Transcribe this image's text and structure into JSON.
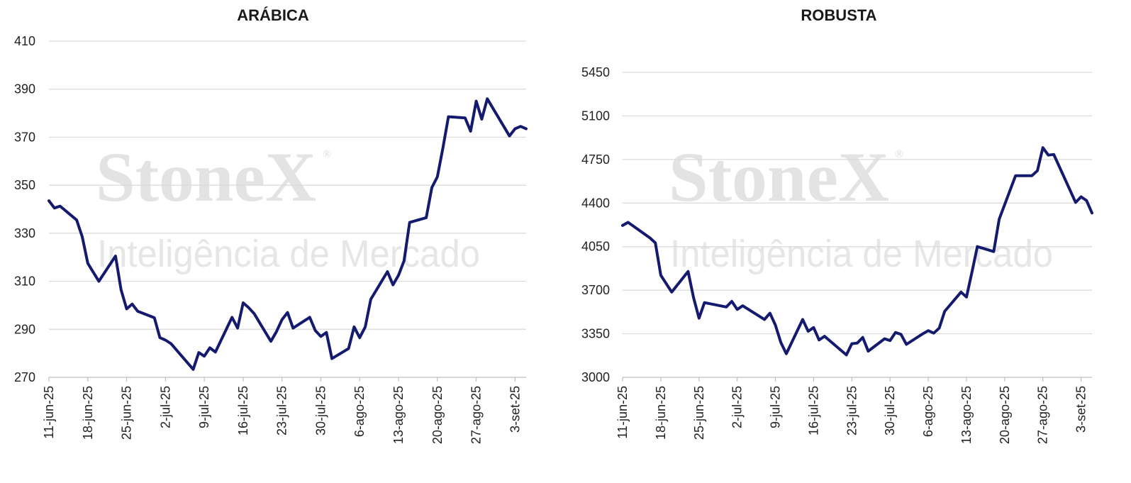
{
  "watermark": {
    "brand": "StoneX",
    "reg": "®",
    "tagline": "Inteligência de Mercado"
  },
  "colors": {
    "series": "#141a6e",
    "grid": "#d9d9d9",
    "watermark": "#e3e3e3"
  },
  "chart_data": [
    {
      "type": "line",
      "title": "ARÁBICA",
      "xlabel": "",
      "ylabel": "",
      "ylim": [
        270,
        410
      ],
      "yticks": [
        270,
        290,
        310,
        330,
        350,
        370,
        390,
        410
      ],
      "grid": true,
      "legend": "none",
      "xlim": [
        "2025-06-11",
        "2025-09-05"
      ],
      "xticks": [
        {
          "date": "2025-06-11",
          "label": "11-jun-25"
        },
        {
          "date": "2025-06-18",
          "label": "18-jun-25"
        },
        {
          "date": "2025-06-25",
          "label": "25-jun-25"
        },
        {
          "date": "2025-07-02",
          "label": "2-jul-25"
        },
        {
          "date": "2025-07-09",
          "label": "9-jul-25"
        },
        {
          "date": "2025-07-16",
          "label": "16-jul-25"
        },
        {
          "date": "2025-07-23",
          "label": "23-jul-25"
        },
        {
          "date": "2025-07-30",
          "label": "30-jul-25"
        },
        {
          "date": "2025-08-06",
          "label": "6-ago-25"
        },
        {
          "date": "2025-08-13",
          "label": "13-ago-25"
        },
        {
          "date": "2025-08-20",
          "label": "20-ago-25"
        },
        {
          "date": "2025-08-27",
          "label": "27-ago-25"
        },
        {
          "date": "2025-09-03",
          "label": "3-set-25"
        }
      ],
      "series": [
        {
          "points": [
            [
              "2025-06-11",
              343.5
            ],
            [
              "2025-06-12",
              340.5
            ],
            [
              "2025-06-13",
              341.3
            ],
            [
              "2025-06-16",
              335.5
            ],
            [
              "2025-06-17",
              328.5
            ],
            [
              "2025-06-18",
              317.5
            ],
            [
              "2025-06-20",
              310.0
            ],
            [
              "2025-06-23",
              320.5
            ],
            [
              "2025-06-24",
              306.5
            ],
            [
              "2025-06-25",
              298.5
            ],
            [
              "2025-06-26",
              300.5
            ],
            [
              "2025-06-27",
              297.5
            ],
            [
              "2025-06-30",
              294.8
            ],
            [
              "2025-07-01",
              286.5
            ],
            [
              "2025-07-02",
              285.5
            ],
            [
              "2025-07-03",
              284.0
            ],
            [
              "2025-07-07",
              273.3
            ],
            [
              "2025-07-08",
              280.3
            ],
            [
              "2025-07-09",
              278.8
            ],
            [
              "2025-07-10",
              282.3
            ],
            [
              "2025-07-11",
              280.5
            ],
            [
              "2025-07-14",
              295.0
            ],
            [
              "2025-07-15",
              290.5
            ],
            [
              "2025-07-16",
              301.0
            ],
            [
              "2025-07-17",
              299.0
            ],
            [
              "2025-07-18",
              296.5
            ],
            [
              "2025-07-21",
              285.0
            ],
            [
              "2025-07-22",
              289.0
            ],
            [
              "2025-07-23",
              294.0
            ],
            [
              "2025-07-24",
              297.0
            ],
            [
              "2025-07-25",
              290.5
            ],
            [
              "2025-07-28",
              295.0
            ],
            [
              "2025-07-29",
              289.5
            ],
            [
              "2025-07-30",
              287.0
            ],
            [
              "2025-07-31",
              288.7
            ],
            [
              "2025-08-01",
              277.8
            ],
            [
              "2025-08-04",
              282.0
            ],
            [
              "2025-08-05",
              291.0
            ],
            [
              "2025-08-06",
              286.5
            ],
            [
              "2025-08-07",
              291.0
            ],
            [
              "2025-08-08",
              302.5
            ],
            [
              "2025-08-11",
              314.0
            ],
            [
              "2025-08-12",
              308.5
            ],
            [
              "2025-08-13",
              312.5
            ],
            [
              "2025-08-14",
              318.5
            ],
            [
              "2025-08-15",
              334.5
            ],
            [
              "2025-08-18",
              336.5
            ],
            [
              "2025-08-19",
              349.0
            ],
            [
              "2025-08-20",
              353.5
            ],
            [
              "2025-08-21",
              365.5
            ],
            [
              "2025-08-22",
              378.5
            ],
            [
              "2025-08-25",
              378.0
            ],
            [
              "2025-08-26",
              372.5
            ],
            [
              "2025-08-27",
              385.0
            ],
            [
              "2025-08-28",
              377.5
            ],
            [
              "2025-08-29",
              386.0
            ],
            [
              "2025-09-02",
              370.5
            ],
            [
              "2025-09-03",
              373.5
            ],
            [
              "2025-09-04",
              374.5
            ],
            [
              "2025-09-05",
              373.5
            ]
          ]
        }
      ]
    },
    {
      "type": "line",
      "title": "ROBUSTA",
      "xlabel": "",
      "ylabel": "",
      "ylim": [
        3000,
        5450
      ],
      "yticks": [
        3000,
        3350,
        3700,
        4050,
        4400,
        4750,
        5100,
        5450
      ],
      "grid": true,
      "legend": "none",
      "xlim": [
        "2025-06-11",
        "2025-09-05"
      ],
      "xticks": [
        {
          "date": "2025-06-11",
          "label": "11-jun-25"
        },
        {
          "date": "2025-06-18",
          "label": "18-jun-25"
        },
        {
          "date": "2025-06-25",
          "label": "25-jun-25"
        },
        {
          "date": "2025-07-02",
          "label": "2-jul-25"
        },
        {
          "date": "2025-07-09",
          "label": "9-jul-25"
        },
        {
          "date": "2025-07-16",
          "label": "16-jul-25"
        },
        {
          "date": "2025-07-23",
          "label": "23-jul-25"
        },
        {
          "date": "2025-07-30",
          "label": "30-jul-25"
        },
        {
          "date": "2025-08-06",
          "label": "6-ago-25"
        },
        {
          "date": "2025-08-13",
          "label": "13-ago-25"
        },
        {
          "date": "2025-08-20",
          "label": "20-ago-25"
        },
        {
          "date": "2025-08-27",
          "label": "27-ago-25"
        },
        {
          "date": "2025-09-03",
          "label": "3-set-25"
        }
      ],
      "series": [
        {
          "points": [
            [
              "2025-06-11",
              4220
            ],
            [
              "2025-06-12",
              4245
            ],
            [
              "2025-06-16",
              4120
            ],
            [
              "2025-06-17",
              4080
            ],
            [
              "2025-06-18",
              3820
            ],
            [
              "2025-06-20",
              3685
            ],
            [
              "2025-06-23",
              3850
            ],
            [
              "2025-06-24",
              3640
            ],
            [
              "2025-06-25",
              3475
            ],
            [
              "2025-06-26",
              3600
            ],
            [
              "2025-06-30",
              3565
            ],
            [
              "2025-07-01",
              3610
            ],
            [
              "2025-07-02",
              3545
            ],
            [
              "2025-07-03",
              3575
            ],
            [
              "2025-07-07",
              3465
            ],
            [
              "2025-07-08",
              3515
            ],
            [
              "2025-07-09",
              3420
            ],
            [
              "2025-07-10",
              3280
            ],
            [
              "2025-07-11",
              3190
            ],
            [
              "2025-07-14",
              3465
            ],
            [
              "2025-07-15",
              3370
            ],
            [
              "2025-07-16",
              3400
            ],
            [
              "2025-07-17",
              3300
            ],
            [
              "2025-07-18",
              3330
            ],
            [
              "2025-07-22",
              3180
            ],
            [
              "2025-07-23",
              3270
            ],
            [
              "2025-07-24",
              3275
            ],
            [
              "2025-07-25",
              3320
            ],
            [
              "2025-07-26",
              3210
            ],
            [
              "2025-07-29",
              3310
            ],
            [
              "2025-07-30",
              3295
            ],
            [
              "2025-07-31",
              3360
            ],
            [
              "2025-08-01",
              3345
            ],
            [
              "2025-08-02",
              3265
            ],
            [
              "2025-08-05",
              3350
            ],
            [
              "2025-08-06",
              3375
            ],
            [
              "2025-08-07",
              3355
            ],
            [
              "2025-08-08",
              3395
            ],
            [
              "2025-08-09",
              3530
            ],
            [
              "2025-08-12",
              3685
            ],
            [
              "2025-08-13",
              3645
            ],
            [
              "2025-08-14",
              3845
            ],
            [
              "2025-08-15",
              4050
            ],
            [
              "2025-08-18",
              4010
            ],
            [
              "2025-08-19",
              4270
            ],
            [
              "2025-08-22",
              4620
            ],
            [
              "2025-08-25",
              4620
            ],
            [
              "2025-08-26",
              4660
            ],
            [
              "2025-08-27",
              4845
            ],
            [
              "2025-08-28",
              4785
            ],
            [
              "2025-08-29",
              4790
            ],
            [
              "2025-09-02",
              4405
            ],
            [
              "2025-09-03",
              4450
            ],
            [
              "2025-09-04",
              4420
            ],
            [
              "2025-09-05",
              4320
            ]
          ]
        }
      ]
    }
  ]
}
